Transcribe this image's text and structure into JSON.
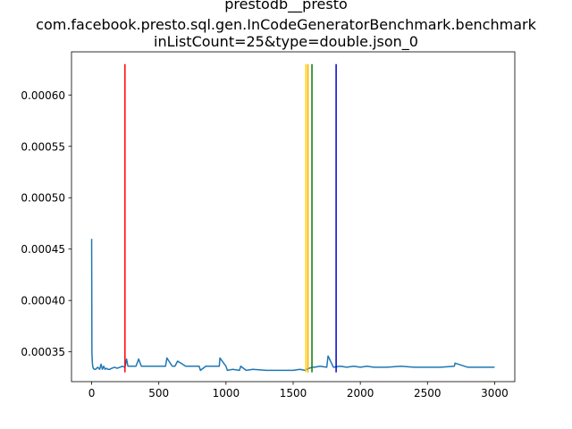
{
  "chart_data": {
    "type": "line",
    "title_lines": [
      "prestodb__presto",
      "com.facebook.presto.sql.gen.InCodeGeneratorBenchmark.benchmark",
      "inListCount=25&type=double.json_0"
    ],
    "xlabel": "",
    "ylabel": "",
    "xlim": [
      -150,
      3150
    ],
    "ylim": [
      0.000321,
      0.000642
    ],
    "x_ticks": [
      0,
      500,
      1000,
      1500,
      2000,
      2500,
      3000
    ],
    "x_tick_labels": [
      "0",
      "500",
      "1000",
      "1500",
      "2000",
      "2500",
      "3000"
    ],
    "y_ticks": [
      0.00035,
      0.0004,
      0.00045,
      0.0005,
      0.00055,
      0.0006
    ],
    "y_tick_labels": [
      "0.00035",
      "0.00040",
      "0.00045",
      "0.00050",
      "0.00055",
      "0.00060"
    ],
    "grid": false,
    "series": [
      {
        "color": "#1f77b4",
        "x": [
          0,
          2,
          5,
          8,
          12,
          20,
          30,
          45,
          60,
          70,
          80,
          90,
          100,
          110,
          120,
          135,
          150,
          170,
          190,
          210,
          230,
          245,
          250,
          260,
          270,
          300,
          330,
          350,
          370,
          400,
          450,
          500,
          550,
          560,
          600,
          620,
          640,
          700,
          750,
          800,
          810,
          850,
          900,
          950,
          955,
          1000,
          1010,
          1050,
          1100,
          1110,
          1150,
          1200,
          1300,
          1400,
          1500,
          1550,
          1590,
          1600,
          1620,
          1640,
          1660,
          1700,
          1750,
          1760,
          1800,
          1850,
          1900,
          1950,
          2000,
          2050,
          2100,
          2150,
          2200,
          2300,
          2400,
          2500,
          2600,
          2700,
          2705,
          2800,
          2900,
          3000
        ],
        "values": [
          0.00046,
          0.000349,
          0.00034,
          0.000336,
          0.000334,
          0.000333,
          0.000333,
          0.000335,
          0.000333,
          0.000338,
          0.000333,
          0.000336,
          0.000333,
          0.000334,
          0.000333,
          0.000333,
          0.000334,
          0.000335,
          0.000334,
          0.000335,
          0.000336,
          0.000335,
          0.000336,
          0.000343,
          0.000336,
          0.000336,
          0.000336,
          0.000343,
          0.000336,
          0.000336,
          0.000336,
          0.000336,
          0.000336,
          0.000344,
          0.000336,
          0.000336,
          0.000341,
          0.000336,
          0.000336,
          0.000336,
          0.000332,
          0.000336,
          0.000336,
          0.000336,
          0.000344,
          0.000336,
          0.000332,
          0.000333,
          0.000332,
          0.000336,
          0.000332,
          0.000333,
          0.000332,
          0.000332,
          0.000332,
          0.000333,
          0.000332,
          0.000333,
          0.000334,
          0.000335,
          0.000335,
          0.000336,
          0.000335,
          0.000346,
          0.000335,
          0.000336,
          0.000335,
          0.000336,
          0.000335,
          0.000336,
          0.000335,
          0.000335,
          0.000335,
          0.000336,
          0.000335,
          0.000335,
          0.000335,
          0.000336,
          0.000339,
          0.000335,
          0.000335,
          0.000335
        ]
      }
    ],
    "vertical_markers": [
      {
        "x": 248,
        "color": "#ff0000",
        "y_min": 0.00033,
        "y_max": 0.00063
      },
      {
        "x": 1595,
        "color": "#ffd700",
        "y_min": 0.00033,
        "y_max": 0.00063
      },
      {
        "x": 1610,
        "color": "#ffa500",
        "y_min": 0.00033,
        "y_max": 0.00063
      },
      {
        "x": 1640,
        "color": "#008000",
        "y_min": 0.00033,
        "y_max": 0.00063
      },
      {
        "x": 1820,
        "color": "#0000cd",
        "y_min": 0.00033,
        "y_max": 0.00063
      }
    ]
  }
}
